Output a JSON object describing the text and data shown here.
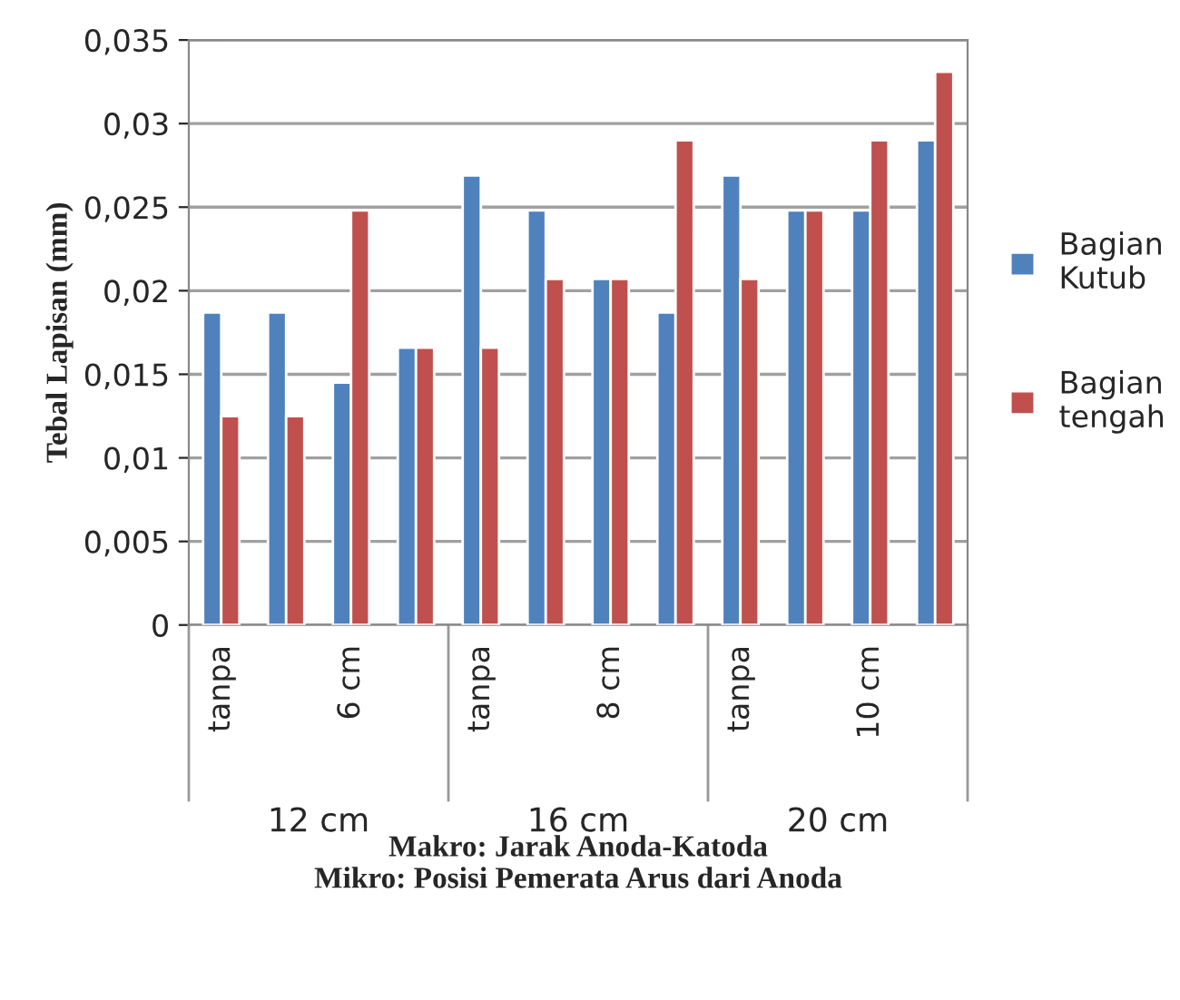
{
  "chart_data": {
    "type": "bar",
    "categories": [
      "tanpa",
      null,
      "6 cm",
      null,
      "tanpa",
      null,
      "8 cm",
      null,
      "tanpa",
      null,
      "10 cm",
      null
    ],
    "series": [
      {
        "name": "Bagian Kutub",
        "color": "#4f81bd",
        "values": [
          0.0187,
          0.0187,
          0.0145,
          0.0166,
          0.0269,
          0.0248,
          0.0207,
          0.0187,
          0.0269,
          0.0248,
          0.0248,
          0.029
        ]
      },
      {
        "name": "Bagian tengah",
        "color": "#c0504d",
        "values": [
          0.0125,
          0.0125,
          0.0248,
          0.0166,
          0.0166,
          0.0207,
          0.0207,
          0.029,
          0.0207,
          0.0248,
          0.029,
          0.0331
        ]
      }
    ],
    "ylabel": "Tebal Lapisan (mm)",
    "xlabel": "Makro: Jarak Anoda-Katoda\nMikro: Posisi Pemerata Arus dari Anoda",
    "annotations": [
      "12 cm",
      "16 cm",
      "20 cm"
    ],
    "ylim": [
      0,
      0.035
    ],
    "yticks": [
      {
        "value": 0,
        "label": "0"
      },
      {
        "value": 0.005,
        "label": "0,005"
      },
      {
        "value": 0.01,
        "label": "0,01"
      },
      {
        "value": 0.015,
        "label": "0,015"
      },
      {
        "value": 0.02,
        "label": "0,02"
      },
      {
        "value": 0.025,
        "label": "0,025"
      },
      {
        "value": 0.03,
        "label": "0,03"
      },
      {
        "value": 0.035,
        "label": "0,035"
      }
    ],
    "grid": "y",
    "legend": "right"
  }
}
